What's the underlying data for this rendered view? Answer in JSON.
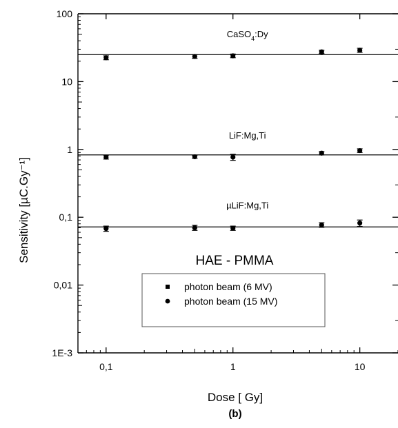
{
  "chart_data": {
    "type": "scatter",
    "title": "",
    "inset_title": "HAE - PMMA",
    "xlabel": "Dose [ Gy]",
    "ylabel": "Sensitivity [µC.Gy⁻¹]",
    "caption": "(b)",
    "x_scale": "log",
    "y_scale": "log",
    "xlim": [
      0.06,
      20
    ],
    "ylim": [
      0.001,
      100
    ],
    "x_ticks": [
      {
        "value": 0.1,
        "label": "0,1"
      },
      {
        "value": 1,
        "label": "1"
      },
      {
        "value": 10,
        "label": "10"
      }
    ],
    "y_ticks": [
      {
        "value": 0.001,
        "label": "1E-3"
      },
      {
        "value": 0.01,
        "label": "0,01"
      },
      {
        "value": 0.1,
        "label": "0,1"
      },
      {
        "value": 1,
        "label": "1"
      },
      {
        "value": 10,
        "label": "10"
      },
      {
        "value": 100,
        "label": "100"
      }
    ],
    "grid": false,
    "legend_position": "lower-center",
    "legend": [
      {
        "marker": "square",
        "label": "photon beam (6 MV)"
      },
      {
        "marker": "circle",
        "label": "photon beam (15 MV)"
      }
    ],
    "groups": [
      {
        "label_main": "CaSO",
        "label_sub": "4",
        "label_tail": ":Dy",
        "label_at": {
          "x": 1.3,
          "y": 45
        },
        "reference_line": 25,
        "points": [
          {
            "x": 0.1,
            "y": 22.5,
            "err": 1.5
          },
          {
            "x": 0.5,
            "y": 23.5,
            "err": 1.5
          },
          {
            "x": 1,
            "y": 24,
            "err": 1.5
          },
          {
            "x": 5,
            "y": 27.5,
            "err": 1.5
          },
          {
            "x": 10,
            "y": 29,
            "err": 2
          }
        ]
      },
      {
        "label_main": "LiF:Mg,Ti",
        "label_at": {
          "x": 1.3,
          "y": 1.45
        },
        "reference_line": 0.83,
        "points": [
          {
            "x": 0.1,
            "y": 0.77,
            "err": 0.05
          },
          {
            "x": 0.5,
            "y": 0.78,
            "err": 0.04
          },
          {
            "x": 1,
            "y": 0.77,
            "err": 0.08
          },
          {
            "x": 5,
            "y": 0.88,
            "err": 0.05
          },
          {
            "x": 10,
            "y": 0.96,
            "err": 0.06
          }
        ]
      },
      {
        "label_main": "µLiF:Mg,Ti",
        "label_at": {
          "x": 1.3,
          "y": 0.135
        },
        "reference_line": 0.072,
        "points": [
          {
            "x": 0.1,
            "y": 0.068,
            "err": 0.006
          },
          {
            "x": 0.5,
            "y": 0.07,
            "err": 0.006
          },
          {
            "x": 1,
            "y": 0.069,
            "err": 0.005
          },
          {
            "x": 5,
            "y": 0.077,
            "err": 0.006
          },
          {
            "x": 10,
            "y": 0.082,
            "err": 0.009
          }
        ]
      }
    ]
  }
}
